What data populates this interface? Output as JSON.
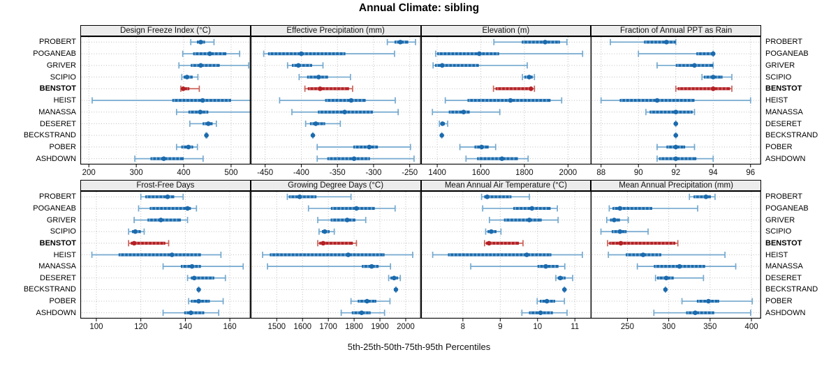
{
  "title": "Annual Climate: sibling",
  "caption": "5th-25th-50th-75th-95th Percentiles",
  "sites": [
    "PROBERT",
    "POGANEAB",
    "GRIVER",
    "SCIPIO",
    "BENSTOT",
    "HEIST",
    "MANASSA",
    "DESERET",
    "BECKSTRAND",
    "POBER",
    "ASHDOWN"
  ],
  "highlight_site": "BENSTOT",
  "percentiles_order": [
    "p5",
    "p25",
    "p50",
    "p75",
    "p95"
  ],
  "colors": {
    "blue_dark": "#1b6aad",
    "blue_light": "#74a9cf",
    "blue_texture": "#9dc6e0",
    "red_dark": "#b42025",
    "red_light": "#c96158",
    "red_texture": "#d99490",
    "grid": "#bdbdbd",
    "strip_bg": "#ececec",
    "border": "#000000",
    "text": "#111111"
  },
  "chart_data": [
    {
      "type": "dotplot-percentiles",
      "row": 0,
      "col": 0,
      "title": "Design Freeze Index (°C)",
      "ticks": [
        200,
        300,
        400,
        500
      ],
      "xmin": 182,
      "xmax": 541,
      "values": [
        [
          415,
          428,
          436,
          445,
          464
        ],
        [
          398,
          420,
          455,
          490,
          518
        ],
        [
          390,
          415,
          436,
          476,
          537
        ],
        [
          396,
          400,
          407,
          419,
          430
        ],
        [
          394,
          396,
          399,
          412,
          433
        ],
        [
          207,
          376,
          440,
          500,
          553
        ],
        [
          385,
          410,
          435,
          452,
          545
        ],
        [
          413,
          440,
          452,
          461,
          469
        ],
        [
          447,
          447,
          448,
          448,
          449
        ],
        [
          385,
          395,
          410,
          420,
          429
        ],
        [
          297,
          330,
          358,
          400,
          441
        ]
      ]
    },
    {
      "type": "dotplot-percentiles",
      "row": 0,
      "col": 1,
      "title": "Effective Precipitation (mm)",
      "ticks": [
        -450,
        -400,
        -350,
        -300,
        -250
      ],
      "xmin": -470,
      "xmax": -234.5,
      "values": [
        [
          -281,
          -271,
          -263,
          -252,
          -242
        ],
        [
          -452,
          -446,
          -400,
          -339,
          -271
        ],
        [
          -419,
          -413,
          -404,
          -385,
          -370
        ],
        [
          -403,
          -392,
          -376,
          -363,
          -332
        ],
        [
          -395,
          -391,
          -374,
          -334,
          -329
        ],
        [
          -430,
          -367,
          -331,
          -311,
          -270
        ],
        [
          -413,
          -377,
          -340,
          -301,
          -266
        ],
        [
          -394,
          -388,
          -380,
          -367,
          -346
        ],
        [
          -384,
          -384,
          -384,
          -384,
          -384
        ],
        [
          -378,
          -328,
          -306,
          -294,
          -249
        ],
        [
          -378,
          -364,
          -327,
          -305,
          -244
        ]
      ]
    },
    {
      "type": "dotplot-percentiles",
      "row": 0,
      "col": 2,
      "title": "Elevation (m)",
      "ticks": [
        1400,
        1600,
        1800,
        2000
      ],
      "xmin": 1326,
      "xmax": 2107,
      "values": [
        [
          1660,
          1788,
          1895,
          1963,
          1995
        ],
        [
          1393,
          1400,
          1593,
          1684,
          2067
        ],
        [
          1381,
          1390,
          1423,
          1591,
          1813
        ],
        [
          1791,
          1800,
          1822,
          1838,
          1846
        ],
        [
          1658,
          1668,
          1830,
          1836,
          1846
        ],
        [
          1437,
          1539,
          1736,
          1920,
          1971
        ],
        [
          1378,
          1453,
          1521,
          1549,
          1687
        ],
        [
          1410,
          1418,
          1424,
          1435,
          1448
        ],
        [
          1421,
          1421,
          1421,
          1421,
          1421
        ],
        [
          1504,
          1571,
          1604,
          1636,
          1668
        ],
        [
          1532,
          1583,
          1697,
          1770,
          1817
        ]
      ]
    },
    {
      "type": "dotplot-percentiles",
      "row": 0,
      "col": 3,
      "title": "Fraction of Annual PPT as Rain",
      "ticks": [
        88,
        90,
        92,
        94,
        96
      ],
      "xmin": 87.45,
      "xmax": 96.56,
      "values": [
        [
          88.5,
          90.3,
          91.5,
          92,
          92
        ],
        [
          90,
          93.1,
          94,
          94,
          94
        ],
        [
          91,
          92,
          93,
          94,
          94
        ],
        [
          93.4,
          93.5,
          94,
          94.5,
          95
        ],
        [
          92,
          92.1,
          94,
          94.9,
          95
        ],
        [
          88,
          89,
          91,
          93,
          96
        ],
        [
          90.4,
          90.6,
          92,
          92.9,
          93
        ],
        [
          92,
          92,
          92,
          92,
          92
        ],
        [
          92,
          92,
          92,
          92,
          92
        ],
        [
          91,
          91.5,
          92,
          92.5,
          93
        ],
        [
          91,
          91.1,
          92,
          93.1,
          94
        ]
      ]
    },
    {
      "type": "dotplot-percentiles",
      "row": 1,
      "col": 0,
      "title": "Frost-Free Days",
      "ticks": [
        100,
        120,
        140,
        160
      ],
      "xmin": 92.8,
      "xmax": 169.3,
      "values": [
        [
          120,
          122,
          132,
          135,
          139
        ],
        [
          119,
          124,
          141,
          142.5,
          145
        ],
        [
          117,
          123,
          129,
          138,
          141
        ],
        [
          114.5,
          116,
          117.5,
          120,
          121.5
        ],
        [
          114.5,
          115.5,
          117,
          131,
          132.5
        ],
        [
          98,
          110,
          134,
          147,
          156
        ],
        [
          130,
          138,
          143,
          147,
          166
        ],
        [
          141,
          142.5,
          144,
          153,
          158
        ],
        [
          146,
          146,
          146,
          146,
          146
        ],
        [
          141.5,
          142.5,
          146,
          151,
          157
        ],
        [
          130,
          139.5,
          142.5,
          148.5,
          155
        ]
      ]
    },
    {
      "type": "dotplot-percentiles",
      "row": 1,
      "col": 1,
      "title": "Growing Degree Days (°C)",
      "ticks": [
        1500,
        1600,
        1700,
        1800,
        1900,
        2000
      ],
      "xmin": 1399,
      "xmax": 2059,
      "values": [
        [
          1541,
          1547,
          1589,
          1654,
          1788
        ],
        [
          1623,
          1710,
          1809,
          1880,
          1959
        ],
        [
          1659,
          1709,
          1773,
          1805,
          1845
        ],
        [
          1664,
          1675,
          1686,
          1705,
          1723
        ],
        [
          1659,
          1665,
          1680,
          1795,
          1809
        ],
        [
          1445,
          1473,
          1777,
          1918,
          2027
        ],
        [
          1464,
          1830,
          1868,
          1895,
          1941
        ],
        [
          1934,
          1941,
          1955,
          1970,
          1979
        ],
        [
          1962,
          1962,
          1962,
          1962,
          1962
        ],
        [
          1788,
          1814,
          1850,
          1886,
          1939
        ],
        [
          1750,
          1791,
          1829,
          1864,
          1918
        ]
      ]
    },
    {
      "type": "dotplot-percentiles",
      "row": 1,
      "col": 2,
      "title": "Mean Annual Air Temperature (°C)",
      "ticks": [
        8,
        9,
        10,
        11
      ],
      "xmin": 6.88,
      "xmax": 11.44,
      "values": [
        [
          8.5,
          8.57,
          8.65,
          9.3,
          9.78
        ],
        [
          8.53,
          9.35,
          9.85,
          10.35,
          10.53
        ],
        [
          8.71,
          9.1,
          9.78,
          10.11,
          10.55
        ],
        [
          8.61,
          8.66,
          8.76,
          8.9,
          9.02
        ],
        [
          8.58,
          8.62,
          8.7,
          9.5,
          9.61
        ],
        [
          7.19,
          7.6,
          9.71,
          10.37,
          11.2
        ],
        [
          8.21,
          10,
          10.22,
          10.56,
          10.73
        ],
        [
          10.49,
          10.54,
          10.61,
          10.75,
          10.94
        ],
        [
          10.72,
          10.72,
          10.72,
          10.72,
          10.72
        ],
        [
          9.99,
          10.06,
          10.25,
          10.47,
          10.72
        ],
        [
          9.58,
          9.77,
          10.08,
          10.41,
          10.79
        ]
      ]
    },
    {
      "type": "dotplot-percentiles",
      "row": 1,
      "col": 3,
      "title": "Mean Annual Precipitation (mm)",
      "ticks": [
        250,
        300,
        350,
        400
      ],
      "xmin": 205.7,
      "xmax": 411.6,
      "values": [
        [
          325,
          330,
          345,
          351,
          356
        ],
        [
          228,
          232,
          241,
          280,
          335
        ],
        [
          225,
          229,
          234,
          241,
          251
        ],
        [
          218,
          231,
          241,
          249,
          275
        ],
        [
          226,
          228,
          242,
          308,
          311
        ],
        [
          227,
          248,
          269,
          291,
          368
        ],
        [
          262,
          282,
          313,
          344,
          381
        ],
        [
          284,
          286,
          297,
          306,
          342
        ],
        [
          296,
          296,
          296,
          296,
          296
        ],
        [
          316,
          334,
          348,
          361,
          401
        ],
        [
          282,
          321,
          332,
          355,
          399
        ]
      ]
    }
  ]
}
